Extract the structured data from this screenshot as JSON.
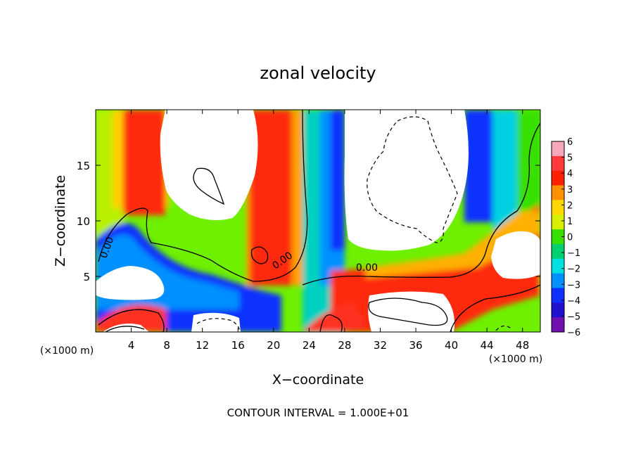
{
  "chart_data": {
    "type": "heatmap",
    "title": "zonal velocity",
    "xlabel": "X−coordinate",
    "ylabel": "Z−coordinate",
    "x_unit_note": "(×1000 m)",
    "z_unit_note": "(×1000 m)",
    "xlim": [
      0,
      50
    ],
    "ylim": [
      0,
      20
    ],
    "x_ticks": [
      "4",
      "8",
      "12",
      "16",
      "20",
      "24",
      "28",
      "32",
      "36",
      "40",
      "44",
      "48"
    ],
    "z_ticks": [
      "5",
      "10",
      "15"
    ],
    "colorbar": {
      "range": [
        -6,
        6
      ],
      "labels": [
        "6",
        "5",
        "4",
        "3",
        "2",
        "1",
        "0",
        "−1",
        "−2",
        "−3",
        "−4",
        "−5",
        "−6"
      ],
      "colors": [
        "#f7a8b8",
        "#ff3a3a",
        "#ff2000",
        "#ff9000",
        "#ffd800",
        "#d8f000",
        "#38e000",
        "#00d070",
        "#00e0e0",
        "#0090ff",
        "#1030ff",
        "#2010d0",
        "#7010b0"
      ]
    },
    "contour_labels": [
      {
        "text": "0.00",
        "x": 1.6,
        "z": 7.5,
        "angle": -70
      },
      {
        "text": "0.00",
        "x": 21.2,
        "z": 6.2,
        "angle": -35
      },
      {
        "text": "0.00",
        "x": 30.5,
        "z": 5.5,
        "angle": 0
      }
    ],
    "footer": "CONTOUR INTERVAL = 1.000E+01"
  }
}
